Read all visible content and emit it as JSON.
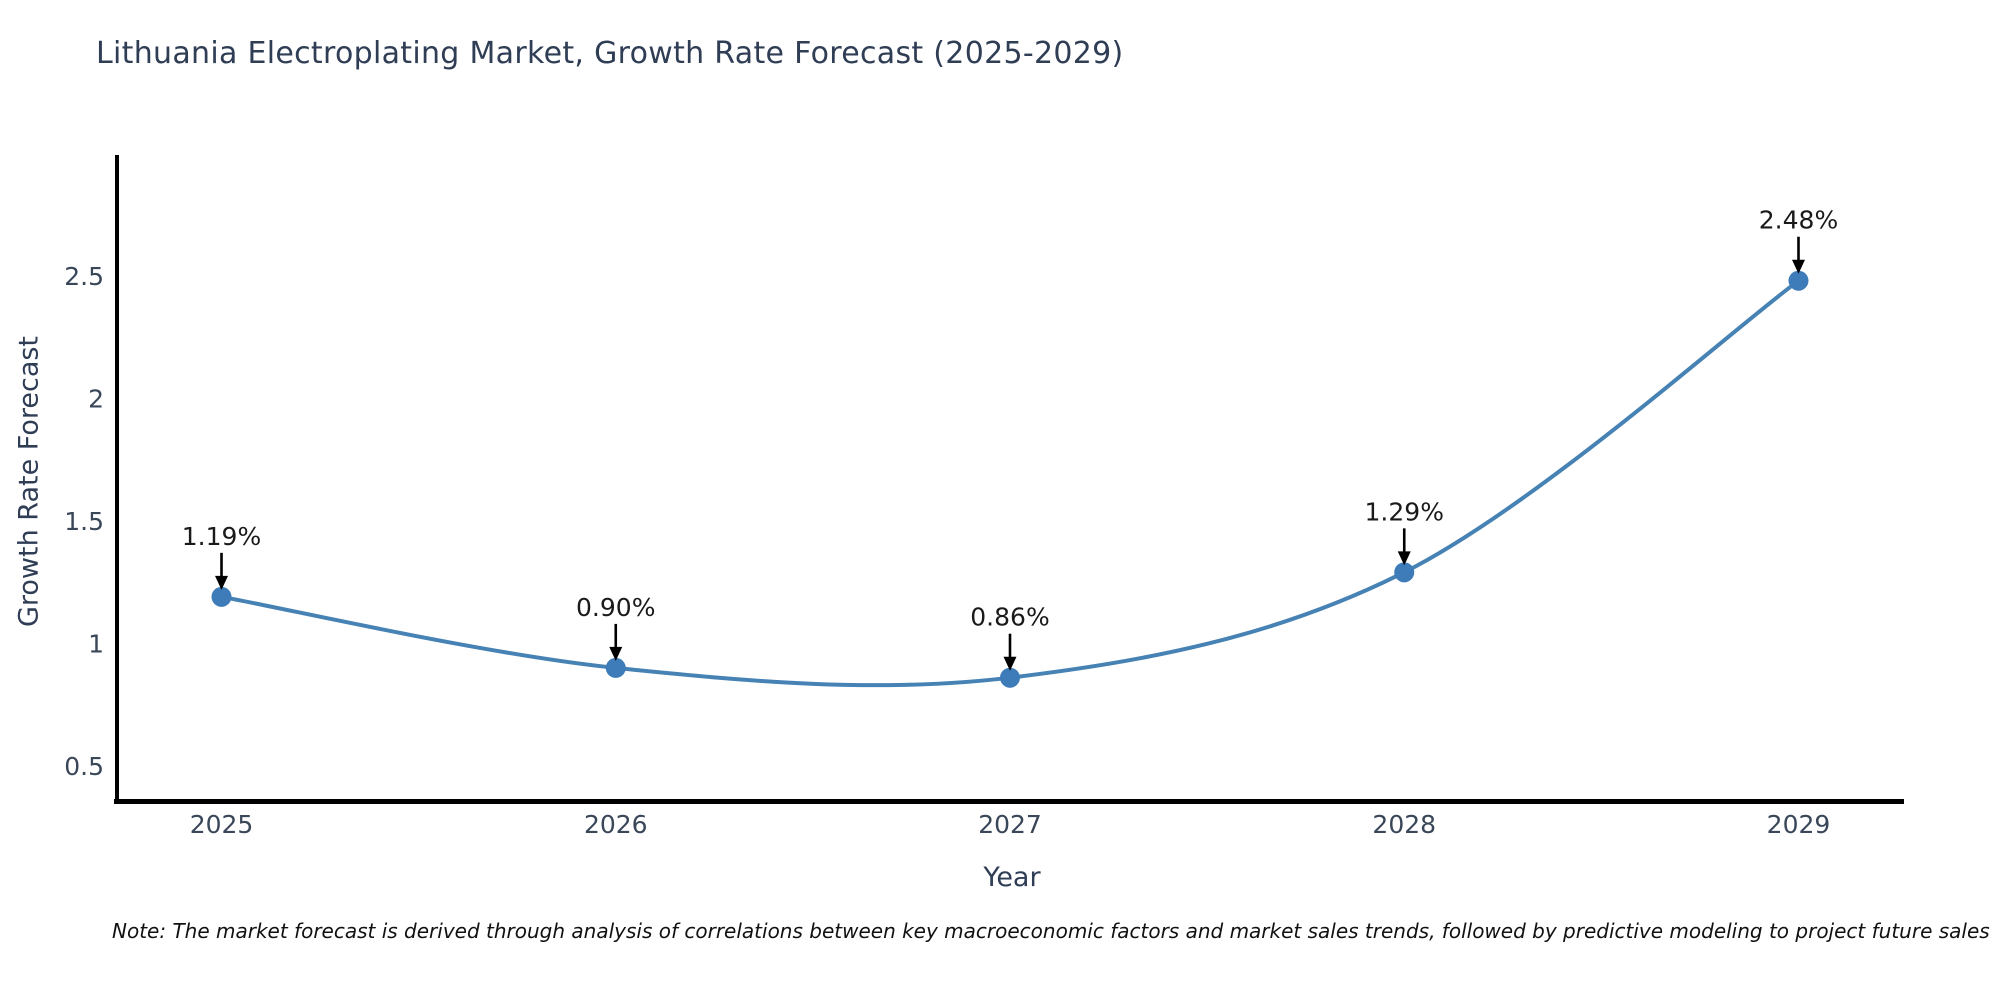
{
  "title": "Lithuania Electroplating Market, Growth Rate Forecast (2025-2029)",
  "note": "Note: The market forecast is derived through analysis of correlations between key macroeconomic factors and market sales trends, followed by predictive modeling to project future sales",
  "chart_data": {
    "type": "line",
    "title": "Lithuania Electroplating Market, Growth Rate Forecast (2025-2029)",
    "xlabel": "Year",
    "ylabel": "Growth Rate Forecast",
    "x": [
      2025,
      2026,
      2027,
      2028,
      2029
    ],
    "values": [
      1.19,
      0.9,
      0.86,
      1.29,
      2.48
    ],
    "point_labels": [
      "1.19%",
      "0.90%",
      "0.86%",
      "1.29%",
      "2.48%"
    ],
    "series_name": "Growth Rate Forecast",
    "xtick_labels": [
      "2025",
      "2026",
      "2027",
      "2028",
      "2029"
    ],
    "ytick_values": [
      0.5,
      1.0,
      1.5,
      2.0,
      2.5
    ],
    "ytick_labels": [
      "0.5",
      "1",
      "1.5",
      "2",
      "2.5"
    ],
    "xlim": [
      2024.74,
      2029.26
    ],
    "ylim": [
      0.361,
      2.993
    ],
    "grid": false,
    "legend": "none",
    "line_color": "#4682b4",
    "marker_color": "#3e7cb9",
    "annotation_color": "#1a1a1a",
    "axis_color": "#000000",
    "tick_color": "#3a4759"
  }
}
